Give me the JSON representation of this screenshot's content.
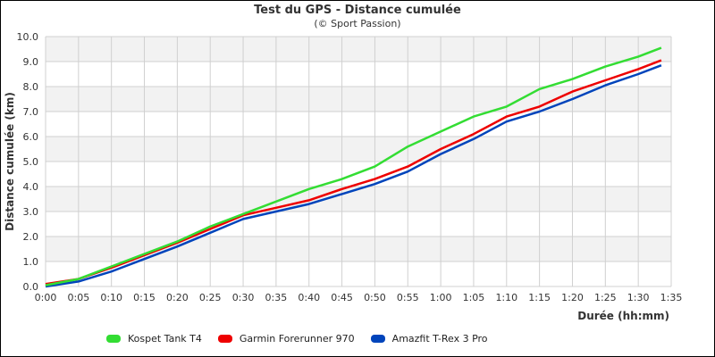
{
  "chart": {
    "title": "Test du GPS - Distance cumulée",
    "subtitle": "(© Sport Passion)"
  },
  "chart_data": {
    "type": "line",
    "title": "Test du GPS - Distance cumulée",
    "subtitle": "(© Sport Passion)",
    "xlabel": "Durée (hh:mm)",
    "ylabel": "Distance cumulée (km)",
    "xlim": [
      0,
      95
    ],
    "ylim": [
      0,
      10
    ],
    "x_ticks": [
      "0:00",
      "0:05",
      "0:10",
      "0:15",
      "0:20",
      "0:25",
      "0:30",
      "0:35",
      "0:40",
      "0:45",
      "0:50",
      "0:55",
      "1:00",
      "1:05",
      "1:10",
      "1:15",
      "1:20",
      "1:25",
      "1:30",
      "1:35"
    ],
    "y_ticks": [
      "0.0",
      "1.0",
      "2.0",
      "3.0",
      "4.0",
      "5.0",
      "6.0",
      "7.0",
      "8.0",
      "9.0",
      "10.0"
    ],
    "grid": true,
    "legend_position": "bottom",
    "x": [
      0,
      5,
      10,
      15,
      20,
      25,
      30,
      35,
      40,
      45,
      50,
      55,
      60,
      65,
      70,
      75,
      80,
      85,
      90,
      93.5
    ],
    "series": [
      {
        "name": "Kospet Tank T4",
        "color": "#33dd33",
        "values": [
          0.05,
          0.3,
          0.8,
          1.3,
          1.8,
          2.4,
          2.9,
          3.4,
          3.9,
          4.3,
          4.8,
          5.6,
          6.2,
          6.8,
          7.2,
          7.9,
          8.3,
          8.8,
          9.2,
          9.55
        ]
      },
      {
        "name": "Garmin Forerunner 970",
        "color": "#ee0000",
        "values": [
          0.1,
          0.3,
          0.75,
          1.25,
          1.75,
          2.3,
          2.85,
          3.15,
          3.45,
          3.9,
          4.3,
          4.8,
          5.5,
          6.1,
          6.8,
          7.2,
          7.8,
          8.25,
          8.7,
          9.05
        ]
      },
      {
        "name": "Amazfit T-Rex 3 Pro",
        "color": "#0044bb",
        "values": [
          0.0,
          0.2,
          0.6,
          1.1,
          1.6,
          2.15,
          2.7,
          3.0,
          3.3,
          3.7,
          4.1,
          4.6,
          5.3,
          5.9,
          6.6,
          7.0,
          7.5,
          8.05,
          8.5,
          8.85
        ]
      }
    ]
  }
}
